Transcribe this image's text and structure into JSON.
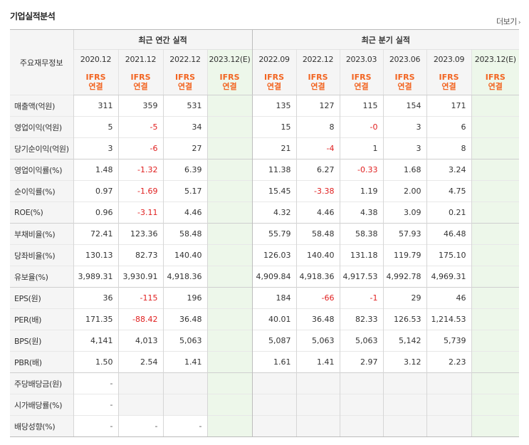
{
  "title": "기업실적분석",
  "more_label": "더보기",
  "more_arrow": "›",
  "row_header_label": "주요재무정보",
  "groups": {
    "annual": "최근 연간 실적",
    "quarterly": "최근 분기 실적"
  },
  "periods": [
    "2020.12",
    "2021.12",
    "2022.12",
    "2023.12(E)",
    "2022.09",
    "2022.12",
    "2023.03",
    "2023.06",
    "2023.09",
    "2023.12(E)"
  ],
  "standard_line1": "IFRS",
  "standard_line2": "연결",
  "colors": {
    "negative": "#e02020",
    "standard": "#f26522",
    "estimate_bg": "#edf7ea",
    "header_bg": "#f5f5f5"
  },
  "rows": [
    {
      "label": "매출액(억원)",
      "values": [
        "311",
        "359",
        "531",
        "",
        "135",
        "127",
        "115",
        "154",
        "171",
        ""
      ]
    },
    {
      "label": "영업이익(억원)",
      "values": [
        "5",
        "-5",
        "34",
        "",
        "15",
        "8",
        "-0",
        "3",
        "6",
        ""
      ]
    },
    {
      "label": "당기순이익(억원)",
      "values": [
        "3",
        "-6",
        "27",
        "",
        "21",
        "-4",
        "1",
        "3",
        "8",
        ""
      ]
    },
    {
      "label": "영업이익률(%)",
      "values": [
        "1.48",
        "-1.32",
        "6.39",
        "",
        "11.38",
        "6.27",
        "-0.33",
        "1.68",
        "3.24",
        ""
      ]
    },
    {
      "label": "순이익률(%)",
      "values": [
        "0.97",
        "-1.69",
        "5.17",
        "",
        "15.45",
        "-3.38",
        "1.19",
        "2.00",
        "4.75",
        ""
      ]
    },
    {
      "label": "ROE(%)",
      "values": [
        "0.96",
        "-3.11",
        "4.46",
        "",
        "4.32",
        "4.46",
        "4.38",
        "3.09",
        "0.21",
        ""
      ]
    },
    {
      "label": "부채비율(%)",
      "values": [
        "72.41",
        "123.36",
        "58.48",
        "",
        "55.79",
        "58.48",
        "58.38",
        "57.93",
        "46.48",
        ""
      ]
    },
    {
      "label": "당좌비율(%)",
      "values": [
        "130.13",
        "82.73",
        "140.40",
        "",
        "126.03",
        "140.40",
        "131.18",
        "119.79",
        "175.10",
        ""
      ]
    },
    {
      "label": "유보율(%)",
      "values": [
        "3,989.31",
        "3,930.91",
        "4,918.36",
        "",
        "4,909.84",
        "4,918.36",
        "4,917.53",
        "4,992.78",
        "4,969.31",
        ""
      ]
    },
    {
      "label": "EPS(원)",
      "values": [
        "36",
        "-115",
        "196",
        "",
        "184",
        "-66",
        "-1",
        "29",
        "46",
        ""
      ]
    },
    {
      "label": "PER(배)",
      "values": [
        "171.35",
        "-88.42",
        "36.48",
        "",
        "40.01",
        "36.48",
        "82.33",
        "126.53",
        "1,214.53",
        ""
      ]
    },
    {
      "label": "BPS(원)",
      "values": [
        "4,141",
        "4,013",
        "5,063",
        "",
        "5,087",
        "5,063",
        "5,063",
        "5,142",
        "5,739",
        ""
      ]
    },
    {
      "label": "PBR(배)",
      "values": [
        "1.50",
        "2.54",
        "1.41",
        "",
        "1.61",
        "1.41",
        "2.97",
        "3.12",
        "2.23",
        ""
      ]
    },
    {
      "label": "주당배당금(원)",
      "values": [
        "-",
        "",
        "",
        "",
        "",
        "",
        "",
        "",
        "",
        ""
      ]
    },
    {
      "label": "시가배당률(%)",
      "values": [
        "-",
        "",
        "",
        "",
        "",
        "",
        "",
        "",
        "",
        ""
      ]
    },
    {
      "label": "배당성향(%)",
      "values": [
        "-",
        "-",
        "-",
        "",
        "",
        "",
        "",
        "",
        "",
        ""
      ]
    }
  ]
}
